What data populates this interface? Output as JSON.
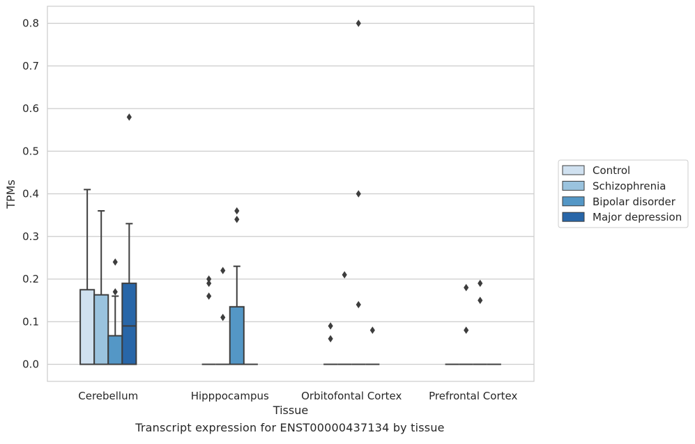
{
  "chart_data": {
    "type": "box",
    "xlabel": "Tissue",
    "ylabel": "TPMs",
    "ylim": [
      -0.04,
      0.84
    ],
    "yticks": [
      "0.0",
      "0.1",
      "0.2",
      "0.3",
      "0.4",
      "0.5",
      "0.6",
      "0.7",
      "0.8"
    ],
    "grid": true,
    "legend_position": "right",
    "categories": [
      "Cerebellum",
      "Hipppocampus",
      "Orbitofontal Cortex",
      "Prefrontal Cortex"
    ],
    "series": [
      {
        "name": "Control",
        "color": "#d0e1f0",
        "boxes": [
          {
            "q1": 0,
            "median": 0,
            "q3": 0.175,
            "whislo": 0,
            "whishi": 0.41,
            "fliers": []
          },
          {
            "q1": 0,
            "median": 0,
            "q3": 0,
            "whislo": 0,
            "whishi": 0,
            "fliers": [
              0.2,
              0.19,
              0.16
            ]
          },
          {
            "q1": 0,
            "median": 0,
            "q3": 0,
            "whislo": 0,
            "whishi": 0,
            "fliers": [
              0.09,
              0.06
            ]
          },
          {
            "q1": 0,
            "median": 0,
            "q3": 0,
            "whislo": 0,
            "whishi": 0,
            "fliers": []
          }
        ]
      },
      {
        "name": "Schizophrenia",
        "color": "#9ac3de",
        "boxes": [
          {
            "q1": 0,
            "median": 0,
            "q3": 0.163,
            "whislo": 0,
            "whishi": 0.36,
            "fliers": []
          },
          {
            "q1": 0,
            "median": 0,
            "q3": 0,
            "whislo": 0,
            "whishi": 0,
            "fliers": [
              0.22,
              0.11
            ]
          },
          {
            "q1": 0,
            "median": 0,
            "q3": 0,
            "whislo": 0,
            "whishi": 0,
            "fliers": [
              0.21
            ]
          },
          {
            "q1": 0,
            "median": 0,
            "q3": 0,
            "whislo": 0,
            "whishi": 0,
            "fliers": [
              0.18,
              0.08
            ]
          }
        ]
      },
      {
        "name": "Bipolar disorder",
        "color": "#5497c6",
        "boxes": [
          {
            "q1": 0,
            "median": 0,
            "q3": 0.067,
            "whislo": 0,
            "whishi": 0.16,
            "fliers": [
              0.24,
              0.17
            ]
          },
          {
            "q1": 0,
            "median": 0,
            "q3": 0.135,
            "whislo": 0,
            "whishi": 0.23,
            "fliers": [
              0.36,
              0.34
            ]
          },
          {
            "q1": 0,
            "median": 0,
            "q3": 0,
            "whislo": 0,
            "whishi": 0,
            "fliers": [
              0.8,
              0.4,
              0.14
            ]
          },
          {
            "q1": 0,
            "median": 0,
            "q3": 0,
            "whislo": 0,
            "whishi": 0,
            "fliers": [
              0.19,
              0.15
            ]
          }
        ]
      },
      {
        "name": "Major depression",
        "color": "#2866a8",
        "boxes": [
          {
            "q1": 0,
            "median": 0.09,
            "q3": 0.19,
            "whislo": 0,
            "whishi": 0.33,
            "fliers": [
              0.58
            ]
          },
          {
            "q1": 0,
            "median": 0,
            "q3": 0,
            "whislo": 0,
            "whishi": 0,
            "fliers": []
          },
          {
            "q1": 0,
            "median": 0,
            "q3": 0,
            "whislo": 0,
            "whishi": 0,
            "fliers": [
              0.08
            ]
          },
          {
            "q1": 0,
            "median": 0,
            "q3": 0,
            "whislo": 0,
            "whishi": 0,
            "fliers": []
          }
        ]
      }
    ]
  },
  "caption": "Transcript expression for ENST00000437134 by tissue"
}
